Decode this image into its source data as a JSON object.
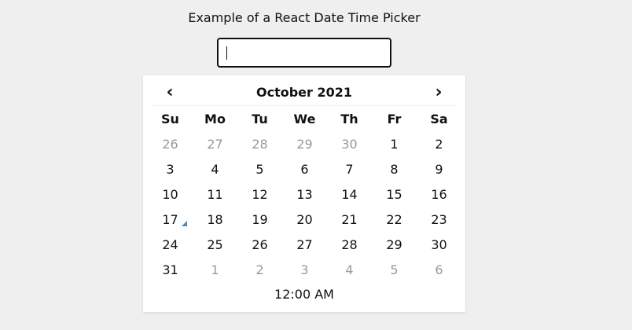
{
  "page": {
    "title": "Example of a React Date Time Picker"
  },
  "input": {
    "value": ""
  },
  "picker": {
    "prev_label": "‹",
    "next_label": "›",
    "month_label": "October 2021",
    "weekdays": [
      "Su",
      "Mo",
      "Tu",
      "We",
      "Th",
      "Fr",
      "Sa"
    ],
    "weeks": [
      [
        {
          "label": "26",
          "kind": "old"
        },
        {
          "label": "27",
          "kind": "old"
        },
        {
          "label": "28",
          "kind": "old"
        },
        {
          "label": "29",
          "kind": "old"
        },
        {
          "label": "30",
          "kind": "old"
        },
        {
          "label": "1",
          "kind": "current"
        },
        {
          "label": "2",
          "kind": "current"
        }
      ],
      [
        {
          "label": "3",
          "kind": "current"
        },
        {
          "label": "4",
          "kind": "current"
        },
        {
          "label": "5",
          "kind": "current"
        },
        {
          "label": "6",
          "kind": "current"
        },
        {
          "label": "7",
          "kind": "current"
        },
        {
          "label": "8",
          "kind": "current"
        },
        {
          "label": "9",
          "kind": "current"
        }
      ],
      [
        {
          "label": "10",
          "kind": "current"
        },
        {
          "label": "11",
          "kind": "current"
        },
        {
          "label": "12",
          "kind": "current"
        },
        {
          "label": "13",
          "kind": "current"
        },
        {
          "label": "14",
          "kind": "current"
        },
        {
          "label": "15",
          "kind": "current"
        },
        {
          "label": "16",
          "kind": "current"
        }
      ],
      [
        {
          "label": "17",
          "kind": "current",
          "today": true
        },
        {
          "label": "18",
          "kind": "current"
        },
        {
          "label": "19",
          "kind": "current"
        },
        {
          "label": "20",
          "kind": "current"
        },
        {
          "label": "21",
          "kind": "current"
        },
        {
          "label": "22",
          "kind": "current"
        },
        {
          "label": "23",
          "kind": "current"
        }
      ],
      [
        {
          "label": "24",
          "kind": "current"
        },
        {
          "label": "25",
          "kind": "current"
        },
        {
          "label": "26",
          "kind": "current"
        },
        {
          "label": "27",
          "kind": "current"
        },
        {
          "label": "28",
          "kind": "current"
        },
        {
          "label": "29",
          "kind": "current"
        },
        {
          "label": "30",
          "kind": "current"
        }
      ],
      [
        {
          "label": "31",
          "kind": "current"
        },
        {
          "label": "1",
          "kind": "new"
        },
        {
          "label": "2",
          "kind": "new"
        },
        {
          "label": "3",
          "kind": "new"
        },
        {
          "label": "4",
          "kind": "new"
        },
        {
          "label": "5",
          "kind": "new"
        },
        {
          "label": "6",
          "kind": "new"
        }
      ]
    ],
    "time_label": "12:00 AM"
  },
  "colors": {
    "background": "#efefef",
    "text": "#111111",
    "muted_day": "#999999",
    "today_marker": "#428bca"
  }
}
